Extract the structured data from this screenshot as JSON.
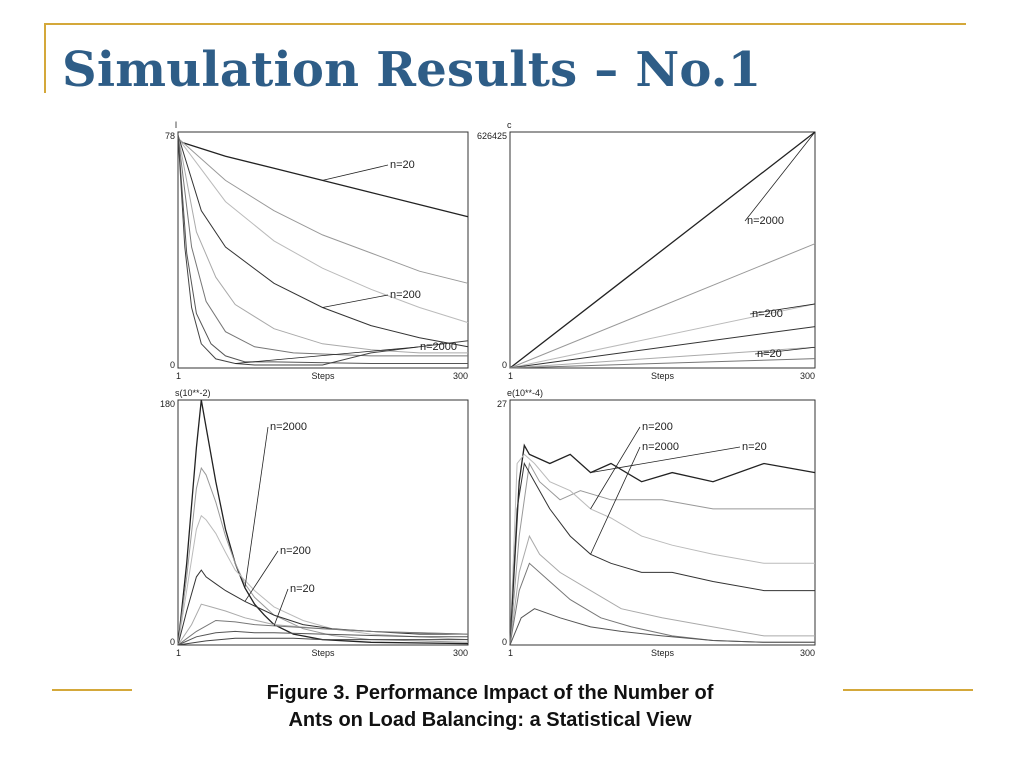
{
  "slide": {
    "title": "Simulation Results – No.1",
    "colors": {
      "title": "#2e5d87",
      "accent": "#d4a83a"
    }
  },
  "caption": {
    "line1": "Figure 3. Performance Impact of the Number of",
    "line2": "Ants on Load Balancing: a Statistical View"
  },
  "chart_data": [
    {
      "type": "line",
      "ylabel": "l",
      "xlabel": "Steps",
      "xlim": [
        1,
        300
      ],
      "ylim": [
        0,
        78
      ],
      "y_tick_labels": [
        "0",
        "78"
      ],
      "x_tick_labels": [
        "1",
        "300"
      ],
      "series": [
        {
          "name": "n=20",
          "x": [
            1,
            50,
            100,
            150,
            200,
            250,
            300
          ],
          "y": [
            75,
            70,
            66,
            62,
            58,
            54,
            50
          ]
        },
        {
          "x": [
            1,
            50,
            100,
            150,
            200,
            250,
            300
          ],
          "y": [
            76,
            62,
            52,
            44,
            38,
            32,
            28
          ]
        },
        {
          "x": [
            1,
            50,
            100,
            150,
            200,
            250,
            300
          ],
          "y": [
            76,
            55,
            42,
            33,
            26,
            20,
            15
          ]
        },
        {
          "name": "n=200",
          "x": [
            1,
            25,
            50,
            100,
            150,
            200,
            250,
            300
          ],
          "y": [
            77,
            52,
            40,
            28,
            20,
            14,
            10,
            7
          ]
        },
        {
          "x": [
            1,
            20,
            40,
            60,
            100,
            150,
            200,
            250,
            300
          ],
          "y": [
            77,
            45,
            30,
            21,
            13,
            8,
            6,
            5,
            5
          ]
        },
        {
          "x": [
            1,
            15,
            30,
            50,
            80,
            120,
            200,
            300
          ],
          "y": [
            77,
            40,
            22,
            12,
            7,
            5,
            4,
            4
          ]
        },
        {
          "x": [
            1,
            10,
            20,
            35,
            50,
            70,
            100,
            200,
            300
          ],
          "y": [
            77,
            38,
            18,
            8,
            4,
            2,
            2,
            1.5,
            1.5
          ]
        },
        {
          "name": "n=2000",
          "x": [
            1,
            8,
            15,
            25,
            40,
            60,
            80,
            150,
            200,
            250,
            300
          ],
          "y": [
            77,
            40,
            20,
            8,
            3,
            1.5,
            1,
            1,
            5,
            7,
            9
          ]
        }
      ],
      "annotations": [
        "n=20",
        "n=200",
        "n=2000"
      ]
    },
    {
      "type": "line",
      "ylabel": "c",
      "xlabel": "Steps",
      "xlim": [
        1,
        300
      ],
      "ylim": [
        0,
        626425
      ],
      "y_tick_labels": [
        "0",
        "626425"
      ],
      "x_tick_labels": [
        "1",
        "300"
      ],
      "series": [
        {
          "name": "n=2000",
          "x": [
            1,
            300
          ],
          "y": [
            0,
            626425
          ]
        },
        {
          "x": [
            1,
            300
          ],
          "y": [
            0,
            330000
          ]
        },
        {
          "name": "n=200",
          "x": [
            1,
            300
          ],
          "y": [
            0,
            170000
          ]
        },
        {
          "x": [
            1,
            300
          ],
          "y": [
            0,
            110000
          ]
        },
        {
          "name": "n=20",
          "x": [
            1,
            300
          ],
          "y": [
            0,
            55000
          ]
        },
        {
          "x": [
            1,
            300
          ],
          "y": [
            0,
            25000
          ]
        }
      ],
      "annotations": [
        "n=2000",
        "n=200",
        "n=20"
      ]
    },
    {
      "type": "line",
      "ylabel": "s(10**-2)",
      "xlabel": "Steps",
      "xlim": [
        1,
        300
      ],
      "ylim": [
        0,
        180
      ],
      "y_tick_labels": [
        "0",
        "180"
      ],
      "x_tick_labels": [
        "1",
        "300"
      ],
      "series": [
        {
          "name": "n=2000",
          "x": [
            1,
            10,
            20,
            25,
            30,
            40,
            50,
            60,
            70,
            80,
            90,
            100,
            120,
            150,
            200,
            300
          ],
          "y": [
            0,
            60,
            145,
            180,
            160,
            120,
            85,
            60,
            42,
            30,
            22,
            15,
            8,
            4,
            2,
            1
          ]
        },
        {
          "x": [
            1,
            10,
            20,
            25,
            30,
            40,
            50,
            60,
            70,
            80,
            100,
            130,
            160,
            200,
            300
          ],
          "y": [
            0,
            50,
            115,
            130,
            125,
            105,
            80,
            60,
            45,
            35,
            22,
            12,
            7,
            4,
            2
          ]
        },
        {
          "x": [
            1,
            10,
            20,
            25,
            30,
            40,
            50,
            60,
            80,
            100,
            130,
            160,
            200,
            300
          ],
          "y": [
            0,
            40,
            85,
            95,
            92,
            82,
            68,
            55,
            40,
            28,
            18,
            12,
            8,
            4
          ]
        },
        {
          "name": "n=200",
          "x": [
            1,
            10,
            20,
            25,
            30,
            40,
            50,
            70,
            100,
            130,
            160,
            200,
            250,
            300
          ],
          "y": [
            0,
            25,
            50,
            55,
            50,
            45,
            40,
            32,
            22,
            15,
            12,
            10,
            8,
            8
          ]
        },
        {
          "x": [
            1,
            15,
            25,
            35,
            50,
            70,
            100,
            150,
            200,
            250,
            300
          ],
          "y": [
            0,
            15,
            30,
            28,
            25,
            20,
            15,
            12,
            10,
            9,
            8
          ]
        },
        {
          "name": "n=20",
          "x": [
            1,
            20,
            40,
            60,
            80,
            100,
            150,
            200,
            250,
            300
          ],
          "y": [
            0,
            10,
            18,
            17,
            15,
            14,
            12,
            10,
            9,
            8
          ]
        },
        {
          "x": [
            1,
            20,
            40,
            60,
            80,
            100,
            150,
            200,
            250,
            300
          ],
          "y": [
            0,
            6,
            9,
            10,
            9,
            9,
            8,
            7,
            6,
            6
          ]
        },
        {
          "x": [
            1,
            30,
            60,
            90,
            120,
            150,
            200,
            250,
            300
          ],
          "y": [
            0,
            3,
            5,
            5,
            5,
            4,
            4,
            4,
            4
          ]
        }
      ],
      "annotations": [
        "n=2000",
        "n=200",
        "n=20"
      ]
    },
    {
      "type": "line",
      "ylabel": "e(10**-4)",
      "xlabel": "Steps",
      "xlim": [
        1,
        300
      ],
      "ylim": [
        0,
        27
      ],
      "y_tick_labels": [
        "0",
        "27"
      ],
      "x_tick_labels": [
        "1",
        "300"
      ],
      "series": [
        {
          "name": "n=20",
          "x": [
            1,
            10,
            15,
            20,
            40,
            60,
            80,
            100,
            130,
            160,
            200,
            250,
            300
          ],
          "y": [
            0,
            18,
            22,
            21,
            20,
            21,
            19,
            20,
            18,
            19,
            18,
            20,
            19
          ]
        },
        {
          "x": [
            1,
            10,
            20,
            30,
            50,
            70,
            100,
            150,
            200,
            250,
            300
          ],
          "y": [
            0,
            12,
            20,
            18,
            16,
            17,
            16,
            16,
            15,
            15,
            15
          ]
        },
        {
          "name": "n=200",
          "x": [
            1,
            8,
            15,
            25,
            40,
            60,
            80,
            100,
            130,
            160,
            200,
            250,
            300
          ],
          "y": [
            0,
            20,
            21,
            20,
            18,
            17,
            15,
            14,
            12,
            11,
            10,
            9,
            9
          ]
        },
        {
          "name": "n=2000",
          "x": [
            1,
            8,
            15,
            25,
            40,
            60,
            80,
            100,
            130,
            160,
            200,
            250,
            300
          ],
          "y": [
            0,
            15,
            20,
            18,
            15,
            12,
            10,
            9,
            8,
            8,
            7,
            6,
            6
          ]
        },
        {
          "x": [
            1,
            10,
            20,
            30,
            50,
            80,
            110,
            150,
            200,
            250,
            300
          ],
          "y": [
            0,
            8,
            12,
            10,
            8,
            6,
            4,
            3,
            2,
            1,
            1
          ]
        },
        {
          "x": [
            1,
            10,
            20,
            40,
            60,
            90,
            120,
            160,
            200,
            250,
            300
          ],
          "y": [
            0,
            6,
            9,
            7,
            5,
            3,
            2,
            1,
            0.5,
            0.3,
            0.3
          ]
        },
        {
          "x": [
            1,
            12,
            25,
            50,
            80,
            110,
            150,
            200,
            250,
            300
          ],
          "y": [
            0,
            3,
            4,
            3,
            2,
            1.5,
            1,
            0.5,
            0.3,
            0.3
          ]
        }
      ],
      "annotations": [
        "n=200",
        "n=2000",
        "n=20"
      ]
    }
  ]
}
